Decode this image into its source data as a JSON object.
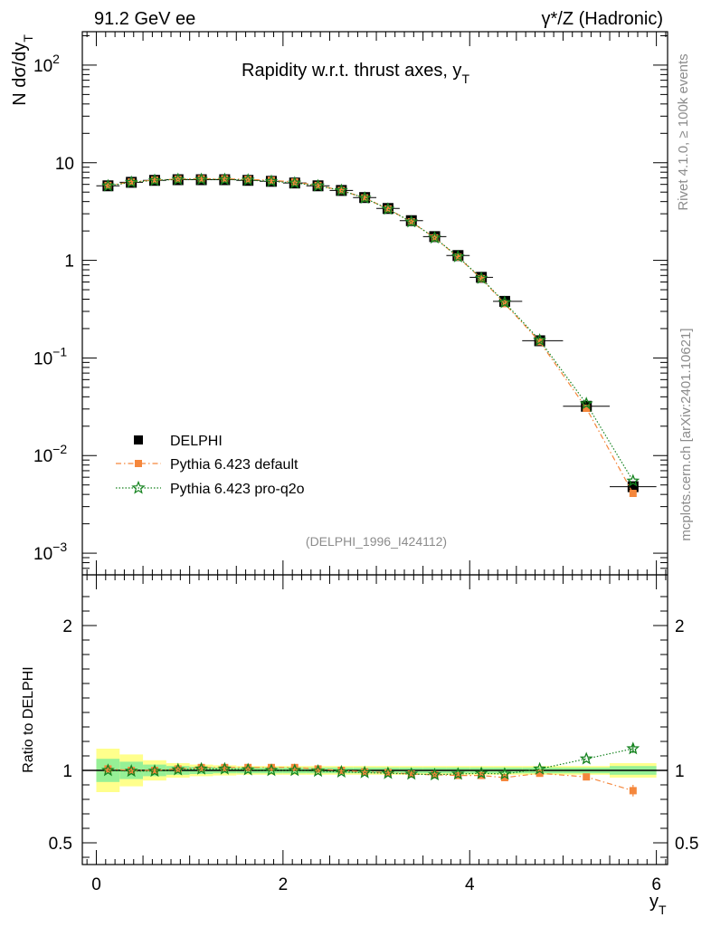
{
  "header": {
    "left": "91.2 GeV ee",
    "right_prefix": "γ*/Z (Hadronic)"
  },
  "side": {
    "rivet": "Rivet 4.1.0, ≥ 100k events",
    "mcplots": "mcplots.cern.ch [arXiv:2401.10621]"
  },
  "chart_data": {
    "type": "line",
    "title": "Rapidity w.r.t. thrust axes, y",
    "title_sub": "T",
    "ylabel_main": "N  dσ/dy",
    "ylabel_sub": "T",
    "ratio_ylabel": "Ratio to DELPHI",
    "xlabel": "y",
    "xlabel_sub": "T",
    "analysis_tag": "(DELPHI_1996_I424112)",
    "x": [
      0.125,
      0.375,
      0.625,
      0.875,
      1.125,
      1.375,
      1.625,
      1.875,
      2.125,
      2.375,
      2.625,
      2.875,
      3.125,
      3.375,
      3.625,
      3.875,
      4.125,
      4.375,
      4.75,
      5.25,
      5.75
    ],
    "xlim": [
      -0.15,
      6.12
    ],
    "ylim_main": [
      0.0006,
      220
    ],
    "ylim_ratio": [
      0.35,
      2.35
    ],
    "x_ticks": [
      0,
      2,
      4,
      6
    ],
    "x_tick_labels": [
      "0",
      "2",
      "4",
      "6"
    ],
    "main_y_ticks": [
      0.001,
      0.01,
      0.1,
      1,
      10,
      100
    ],
    "main_y_tick_labels": [
      {
        "base": "10",
        "exp": "−3"
      },
      {
        "base": "10",
        "exp": "−2"
      },
      {
        "base": "10",
        "exp": "−1"
      },
      {
        "base": "1",
        "exp": ""
      },
      {
        "base": "10",
        "exp": ""
      },
      {
        "base": "10",
        "exp": "2"
      }
    ],
    "ratio_y_ticks": [
      0.5,
      1,
      2
    ],
    "ratio_y_tick_labels": [
      "0.5",
      "1",
      "2"
    ],
    "series": [
      {
        "name": "DELPHI",
        "color": "#000000",
        "marker": "square",
        "values": [
          5.8,
          6.3,
          6.6,
          6.7,
          6.7,
          6.7,
          6.6,
          6.45,
          6.2,
          5.8,
          5.2,
          4.4,
          3.4,
          2.55,
          1.75,
          1.12,
          0.67,
          0.38,
          0.15,
          0.032,
          0.0048
        ],
        "ratio_band_inner": [
          0.08,
          0.06,
          0.04,
          0.03,
          0.025,
          0.02,
          0.02,
          0.02,
          0.02,
          0.02,
          0.02,
          0.02,
          0.02,
          0.02,
          0.02,
          0.02,
          0.02,
          0.02,
          0.02,
          0.02,
          0.03
        ],
        "ratio_band_outer": [
          0.15,
          0.11,
          0.07,
          0.05,
          0.04,
          0.035,
          0.03,
          0.03,
          0.03,
          0.03,
          0.03,
          0.03,
          0.03,
          0.03,
          0.03,
          0.03,
          0.03,
          0.03,
          0.03,
          0.03,
          0.05
        ]
      },
      {
        "name": "Pythia 6.423 default",
        "color": "#f5873c",
        "marker": "square",
        "values": [
          5.85,
          6.35,
          6.65,
          6.8,
          6.85,
          6.85,
          6.75,
          6.6,
          6.35,
          5.85,
          5.2,
          4.36,
          3.36,
          2.48,
          1.7,
          1.08,
          0.65,
          0.36,
          0.147,
          0.0305,
          0.0041
        ],
        "ratio": [
          1.01,
          1.0,
          1.0,
          1.01,
          1.02,
          1.02,
          1.02,
          1.02,
          1.02,
          1.01,
          1.0,
          0.99,
          0.985,
          0.975,
          0.97,
          0.965,
          0.965,
          0.95,
          0.98,
          0.955,
          0.86
        ]
      },
      {
        "name": "Pythia 6.423 pro-q2o",
        "color": "#14821e",
        "marker": "star",
        "values": [
          5.8,
          6.3,
          6.6,
          6.75,
          6.75,
          6.75,
          6.65,
          6.45,
          6.2,
          5.8,
          5.2,
          4.35,
          3.35,
          2.48,
          1.7,
          1.09,
          0.655,
          0.37,
          0.152,
          0.034,
          0.0055
        ],
        "ratio": [
          1.0,
          0.995,
          0.995,
          1.005,
          1.01,
          1.01,
          1.005,
          1.0,
          1.0,
          0.995,
          0.99,
          0.985,
          0.98,
          0.975,
          0.97,
          0.975,
          0.98,
          0.975,
          1.01,
          1.08,
          1.15
        ]
      }
    ],
    "legend_position": "lower-left"
  }
}
